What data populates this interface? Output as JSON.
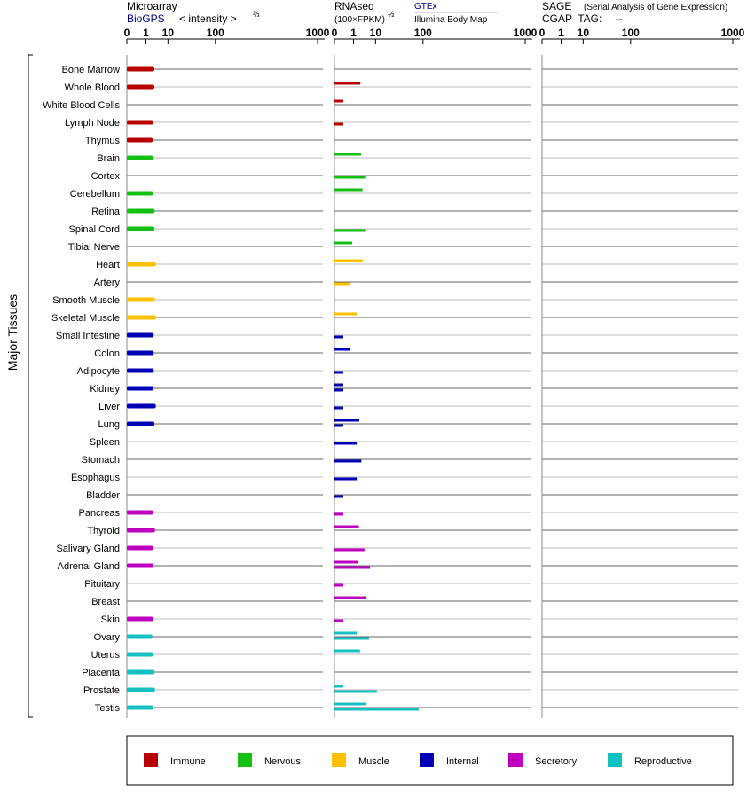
{
  "panels": {
    "microarray": {
      "title": "Microarray",
      "subtitle": "BioGPS",
      "scale_label": "< intensity >",
      "scale_exponent": "⅔"
    },
    "rnaseq": {
      "title": "RNAseq",
      "unit": "(100×FPKM)",
      "unit_exponent": "½",
      "source_1": "GTEx",
      "source_2": "Illumina Body Map"
    },
    "sage": {
      "title": "SAGE",
      "title_note": "(Serial Analysis of Gene Expression)",
      "tag_label": "CGAP  TAG:",
      "tag_value": "--"
    }
  },
  "y_axis_label": "Major Tissues",
  "colors": {
    "Immune": "#b80000",
    "Nervous": "#14c014",
    "Muscle": "#ffc000",
    "Internal": "#0000b4",
    "Secretory": "#c000c0",
    "Reproductive": "#14c0c0"
  },
  "legend": [
    "Immune",
    "Nervous",
    "Muscle",
    "Internal",
    "Secretory",
    "Reproductive"
  ],
  "chart_data": [
    {
      "type": "bar",
      "title": "Microarray",
      "xlabel": "< intensity >⅔",
      "x_ticks": [
        "0",
        "1",
        "10",
        "100",
        "1000"
      ],
      "xlim": [
        0,
        1000
      ],
      "categories": [
        "Bone Marrow",
        "Whole Blood",
        "White Blood Cells",
        "Lymph Node",
        "Thymus",
        "Brain",
        "Cortex",
        "Cerebellum",
        "Retina",
        "Spinal Cord",
        "Tibial Nerve",
        "Heart",
        "Artery",
        "Smooth Muscle",
        "Skeletal Muscle",
        "Small Intestine",
        "Colon",
        "Adipocyte",
        "Kidney",
        "Liver",
        "Lung",
        "Spleen",
        "Stomach",
        "Esophagus",
        "Bladder",
        "Pancreas",
        "Thyroid",
        "Salivary Gland",
        "Adrenal Gland",
        "Pituitary",
        "Breast",
        "Skin",
        "Ovary",
        "Uterus",
        "Placenta",
        "Prostate",
        "Testis"
      ],
      "groups": [
        "Immune",
        "Immune",
        "Immune",
        "Immune",
        "Immune",
        "Nervous",
        "Nervous",
        "Nervous",
        "Nervous",
        "Nervous",
        "Nervous",
        "Muscle",
        "Muscle",
        "Muscle",
        "Muscle",
        "Internal",
        "Internal",
        "Internal",
        "Internal",
        "Internal",
        "Internal",
        "Internal",
        "Internal",
        "Internal",
        "Internal",
        "Secretory",
        "Secretory",
        "Secretory",
        "Secretory",
        "Secretory",
        "Secretory",
        "Secretory",
        "Reproductive",
        "Reproductive",
        "Reproductive",
        "Reproductive",
        "Reproductive"
      ],
      "values": [
        3.0,
        3.0,
        null,
        2.6,
        2.5,
        2.6,
        null,
        2.6,
        3.1,
        3.0,
        null,
        3.5,
        null,
        3.2,
        3.6,
        2.8,
        2.8,
        2.8,
        2.7,
        3.5,
        3.0,
        null,
        null,
        null,
        null,
        2.6,
        3.2,
        2.6,
        2.7,
        null,
        null,
        2.6,
        2.4,
        2.6,
        3.1,
        3.2,
        2.6
      ]
    },
    {
      "type": "bar",
      "title": "RNAseq",
      "xlabel": "(100×FPKM)½",
      "x_ticks": [
        "0",
        "1",
        "10",
        "100",
        "1000"
      ],
      "xlim": [
        0,
        1000
      ],
      "categories": [
        "Bone Marrow",
        "Whole Blood",
        "White Blood Cells",
        "Lymph Node",
        "Thymus",
        "Brain",
        "Cortex",
        "Cerebellum",
        "Retina",
        "Spinal Cord",
        "Tibial Nerve",
        "Heart",
        "Artery",
        "Smooth Muscle",
        "Skeletal Muscle",
        "Small Intestine",
        "Colon",
        "Adipocyte",
        "Kidney",
        "Liver",
        "Lung",
        "Spleen",
        "Stomach",
        "Esophagus",
        "Bladder",
        "Pancreas",
        "Thyroid",
        "Salivary Gland",
        "Adrenal Gland",
        "Pituitary",
        "Breast",
        "Skin",
        "Ovary",
        "Uterus",
        "Placenta",
        "Prostate",
        "Testis"
      ],
      "groups": [
        "Immune",
        "Immune",
        "Immune",
        "Immune",
        "Immune",
        "Nervous",
        "Nervous",
        "Nervous",
        "Nervous",
        "Nervous",
        "Nervous",
        "Muscle",
        "Muscle",
        "Muscle",
        "Muscle",
        "Internal",
        "Internal",
        "Internal",
        "Internal",
        "Internal",
        "Internal",
        "Internal",
        "Internal",
        "Internal",
        "Internal",
        "Secretory",
        "Secretory",
        "Secretory",
        "Secretory",
        "Secretory",
        "Secretory",
        "Secretory",
        "Reproductive",
        "Reproductive",
        "Reproductive",
        "Reproductive",
        "Reproductive"
      ],
      "series": [
        {
          "name": "GTEx",
          "values": [
            null,
            2.5,
            0.1,
            null,
            null,
            2.7,
            null,
            3.2,
            null,
            null,
            0.8,
            3.3,
            null,
            null,
            1.6,
            null,
            0.6,
            null,
            0.1,
            null,
            2.2,
            null,
            null,
            null,
            null,
            null,
            2.1,
            null,
            1.8,
            null,
            4.6,
            null,
            1.6,
            2.4,
            null,
            0.1,
            4.6
          ]
        },
        {
          "name": "Illumina Body Map",
          "values": [
            null,
            null,
            null,
            0.1,
            null,
            null,
            4.2,
            null,
            null,
            4.2,
            null,
            null,
            0.6,
            null,
            null,
            0.1,
            null,
            0.1,
            0.1,
            0.1,
            0.1,
            1.6,
            2.8,
            1.6,
            0.1,
            0.1,
            null,
            3.9,
            6.5,
            0.1,
            null,
            0.1,
            5.9,
            null,
            null,
            11.0,
            86.0
          ]
        }
      ]
    },
    {
      "type": "bar",
      "title": "SAGE",
      "x_ticks": [
        "0",
        "1",
        "10",
        "100",
        "1000"
      ],
      "xlim": [
        0,
        1000
      ],
      "values": []
    }
  ]
}
